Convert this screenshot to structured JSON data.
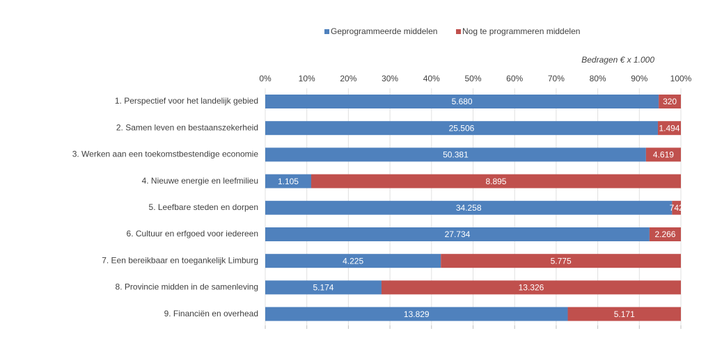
{
  "chart_data": {
    "type": "bar",
    "orientation": "horizontal",
    "stacking": "percent",
    "annotation": "Bedragen € x 1.000",
    "categories": [
      "1. Perspectief voor het landelijk gebied",
      "2. Samen leven en bestaanszekerheid",
      "3. Werken aan een toekomstbestendige economie",
      "4. Nieuwe energie en leefmilieu",
      "5. Leefbare steden en dorpen",
      "6. Cultuur en erfgoed voor iedereen",
      "7. Een bereikbaar en toegankelijk Limburg",
      "8. Provincie midden in de samenleving",
      "9. Financiën en overhead"
    ],
    "series": [
      {
        "name": "Geprogrammeerde middelen",
        "color": "#4f81bd",
        "values": [
          5680,
          25506,
          50381,
          1105,
          34258,
          27734,
          4225,
          5174,
          13829
        ],
        "value_labels": [
          "5.680",
          "25.506",
          "50.381",
          "1.105",
          "34.258",
          "27.734",
          "4.225",
          "5.174",
          "13.829"
        ]
      },
      {
        "name": "Nog te programmeren middelen",
        "color": "#c0504d",
        "values": [
          320,
          1494,
          4619,
          8895,
          742,
          2266,
          5775,
          13326,
          5171
        ],
        "value_labels": [
          "320",
          "1.494",
          "4.619",
          "8.895",
          "742",
          "2.266",
          "5.775",
          "13.326",
          "5.171"
        ]
      }
    ],
    "xlim": [
      0,
      100
    ],
    "xticks": [
      {
        "value": 0,
        "label": "0%"
      },
      {
        "value": 10,
        "label": "10%"
      },
      {
        "value": 20,
        "label": "20%"
      },
      {
        "value": 30,
        "label": "30%"
      },
      {
        "value": 40,
        "label": "40%"
      },
      {
        "value": 50,
        "label": "50%"
      },
      {
        "value": 60,
        "label": "60%"
      },
      {
        "value": 70,
        "label": "70%"
      },
      {
        "value": 80,
        "label": "80%"
      },
      {
        "value": 90,
        "label": "90%"
      },
      {
        "value": 100,
        "label": "100%"
      }
    ],
    "grid": true,
    "legend": "top"
  }
}
